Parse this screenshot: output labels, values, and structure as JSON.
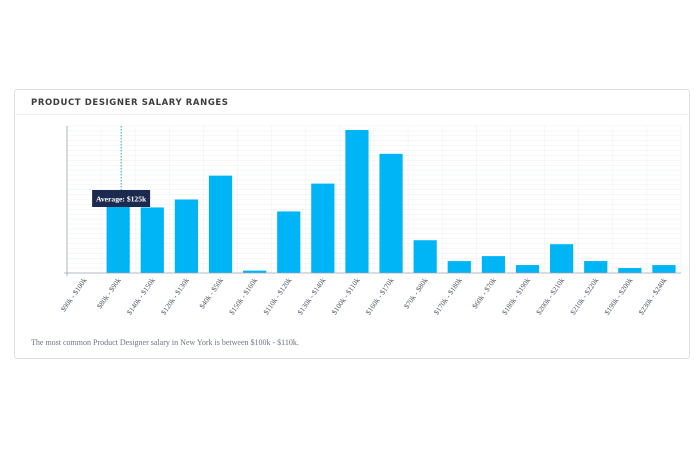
{
  "card": {
    "title": "PRODUCT DESIGNER SALARY RANGES",
    "footnote": "The most common Product Designer salary in New York is between $100k - $110k."
  },
  "tooltip": {
    "label": "Average: $125k",
    "category_index": 1
  },
  "colors": {
    "bar": "#00b5f5",
    "tooltip_bg": "#1b2a4e",
    "average_line": "#23a8d0",
    "grid": "#eef1f4",
    "axis": "#9aa3ad"
  },
  "chart_data": {
    "type": "bar",
    "title": "PRODUCT DESIGNER SALARY RANGES",
    "xlabel": "",
    "ylabel": "",
    "categories": [
      "$90k - $100k",
      "$80k - $90k",
      "$140k - $150k",
      "$120k - $130k",
      "$40k - $50k",
      "$150k - $160k",
      "$110k - $120k",
      "$130k - $140k",
      "$100k - $110k",
      "$160k - $170k",
      "$70k - $80k",
      "$170k - $180k",
      "$60k - $70k",
      "$180k - $190k",
      "$200k - $210k",
      "$210k - $220k",
      "$190k - $200k",
      "$230k - $240k"
    ],
    "values": [
      0,
      39,
      33,
      37,
      49,
      1.2,
      31,
      45,
      72,
      60,
      16.5,
      6,
      8.5,
      4,
      14.5,
      6,
      2.5,
      4
    ],
    "ylim": [
      0,
      74
    ],
    "grid": true,
    "average": {
      "label": "Average: $125k",
      "category_index": 1
    }
  }
}
